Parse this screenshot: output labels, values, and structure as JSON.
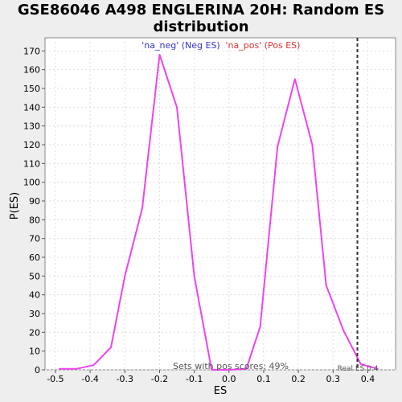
{
  "chart_data": {
    "type": "line",
    "title_line1": "GSE86046 A498 ENGLERINA 20H: Random ES",
    "title_line2": "distribution",
    "xlabel": "ES",
    "ylabel": "P(ES)",
    "xlim": [
      -0.53,
      0.48
    ],
    "ylim": [
      0,
      177
    ],
    "xticks": [
      "-0.5",
      "-0.4",
      "-0.3",
      "-0.2",
      "-0.1",
      "0.0",
      "0.1",
      "0.2",
      "0.3",
      "0.4"
    ],
    "xtick_values": [
      -0.5,
      -0.4,
      -0.3,
      -0.2,
      -0.1,
      0.0,
      0.1,
      0.2,
      0.3,
      0.4
    ],
    "yticks": [
      "0",
      "10",
      "20",
      "30",
      "40",
      "50",
      "60",
      "70",
      "80",
      "90",
      "100",
      "110",
      "120",
      "130",
      "140",
      "150",
      "160",
      "170"
    ],
    "ytick_values": [
      0,
      10,
      20,
      30,
      40,
      50,
      60,
      70,
      80,
      90,
      100,
      110,
      120,
      130,
      140,
      150,
      160,
      170
    ],
    "grid": true,
    "legend": [
      {
        "label": "'na_neg' (Neg ES)",
        "color": "#3333cc"
      },
      {
        "label": "'na_pos' (Pos ES)",
        "color": "#dd3333"
      }
    ],
    "series": [
      {
        "color": "#ee44ee",
        "x": [
          -0.49,
          -0.44,
          -0.39,
          -0.34,
          -0.3,
          -0.25,
          -0.2,
          -0.15,
          -0.1,
          -0.05,
          0.0,
          0.05,
          0.09,
          0.14,
          0.19,
          0.24,
          0.28,
          0.33,
          0.38,
          0.43
        ],
        "y": [
          0.5,
          0.5,
          2.5,
          12,
          50,
          86,
          168,
          140,
          50,
          0,
          0,
          0.5,
          23,
          119,
          155,
          120,
          45,
          21,
          3,
          0.5
        ]
      }
    ],
    "marker": {
      "label": "Real ES 0.4",
      "x": 0.37,
      "color": "#333333"
    },
    "annotation": "Sets with pos scores: 49%"
  }
}
